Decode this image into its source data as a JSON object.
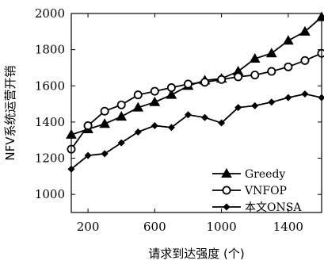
{
  "chart_data": {
    "type": "line",
    "xlabel": "请求到达强度 (个)",
    "ylabel": "NFV系统运营开销",
    "xlim": [
      100,
      1600
    ],
    "ylim": [
      900,
      2000
    ],
    "xticks": [
      200,
      600,
      1000,
      1400
    ],
    "yticks": [
      1000,
      1200,
      1400,
      1600,
      1800,
      2000
    ],
    "grid": false,
    "legend_position": "bottom-right",
    "x": [
      100,
      200,
      300,
      400,
      500,
      600,
      700,
      800,
      900,
      1000,
      1100,
      1200,
      1300,
      1400,
      1500,
      1600
    ],
    "series": [
      {
        "name": "Greedy",
        "marker": "triangle",
        "color": "#000000",
        "values": [
          1330,
          1360,
          1390,
          1430,
          1480,
          1510,
          1550,
          1600,
          1630,
          1640,
          1680,
          1750,
          1780,
          1850,
          1900,
          1980
        ]
      },
      {
        "name": "VNFOP",
        "marker": "circle",
        "color": "#000000",
        "values": [
          1250,
          1380,
          1460,
          1495,
          1550,
          1570,
          1590,
          1610,
          1620,
          1635,
          1650,
          1660,
          1680,
          1705,
          1740,
          1780
        ]
      },
      {
        "name": "本文ONSA",
        "marker": "diamond",
        "color": "#000000",
        "values": [
          1140,
          1215,
          1225,
          1285,
          1345,
          1380,
          1370,
          1440,
          1425,
          1395,
          1480,
          1490,
          1510,
          1535,
          1555,
          1535
        ]
      }
    ]
  }
}
